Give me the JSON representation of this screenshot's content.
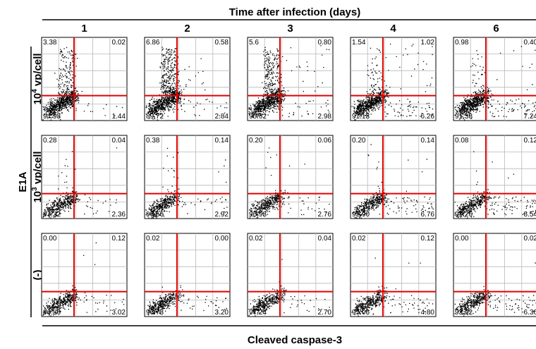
{
  "header": {
    "title": "Time after infection (days)"
  },
  "figure": {
    "y_group_label": "E1A",
    "x_axis_label": "Cleaved caspase-3"
  },
  "chart_data": {
    "type": "scatter",
    "title": "Time after infection (days)",
    "xlabel": "Cleaved caspase-3",
    "ylabel": "E1A",
    "grid": true,
    "quadrant_lines_color": "#e00000",
    "point_color": "#000000",
    "columns": [
      "1",
      "2",
      "3",
      "4",
      "6"
    ],
    "rows": [
      {
        "base": "10",
        "exp": "4",
        "unit": " vp/cell"
      },
      {
        "base": "10",
        "exp": "3",
        "unit": " vp/cell"
      },
      {
        "base": "(-)",
        "exp": "",
        "unit": ""
      }
    ],
    "panels": [
      [
        {
          "ul": "3.38",
          "ur": "0.02",
          "ll": "94.98",
          "lr": "1.44"
        },
        {
          "ul": "6.86",
          "ur": "0.58",
          "ll": "89.72",
          "lr": "2.84"
        },
        {
          "ul": "5.6",
          "ur": "0.80",
          "ll": "90.62",
          "lr": "2.98"
        },
        {
          "ul": "1.54",
          "ur": "1.02",
          "ll": "91.18",
          "lr": "6.26"
        },
        {
          "ul": "0.98",
          "ur": "0.40",
          "ll": "91.38",
          "lr": "7.24"
        }
      ],
      [
        {
          "ul": "0.28",
          "ur": "0.04",
          "ll": "97.32",
          "lr": "2.36"
        },
        {
          "ul": "0.38",
          "ur": "0.14",
          "ll": "96.56",
          "lr": "2.92"
        },
        {
          "ul": "0.20",
          "ur": "0.06",
          "ll": "96.98",
          "lr": "2.76"
        },
        {
          "ul": "0.20",
          "ur": "0.14",
          "ll": "92.90",
          "lr": "6.76"
        },
        {
          "ul": "0.08",
          "ur": "0.12",
          "ll": "91.26",
          "lr": "8.54"
        }
      ],
      [
        {
          "ul": "0.00",
          "ur": "0.12",
          "ll": "96.86",
          "lr": "3.02"
        },
        {
          "ul": "0.02",
          "ur": "0.00",
          "ll": "96.78",
          "lr": "3.20"
        },
        {
          "ul": "0.02",
          "ur": "0.04",
          "ll": "97.24",
          "lr": "2.70"
        },
        {
          "ul": "0.02",
          "ur": "0.12",
          "ll": "95.06",
          "lr": "4.80"
        },
        {
          "ul": "0.00",
          "ur": "0.02",
          "ll": "93.62",
          "lr": "6.36"
        }
      ]
    ]
  }
}
